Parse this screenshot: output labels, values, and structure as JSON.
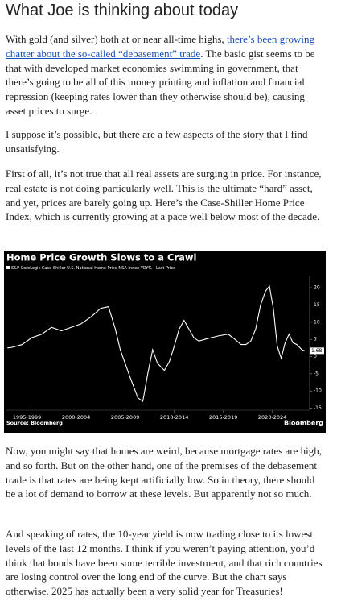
{
  "header": {
    "title": "What Joe is thinking about today"
  },
  "paragraphs": [
    [
      "With gold (and silver) both at or near all-time highs,",
      " there’s been growing chatter about the so-called “debasement” trade",
      ". The basic gist seems to be that with developed market economies swimming in government, that there’s going to be all of this money printing and inflation and financial repression (keeping rates lower than they otherwise should be), causing asset prices to surge."
    ],
    [
      "I suppose it’s possible, but there are a few aspects of the story that I find unsatisfying."
    ],
    [
      "First of all, it’s not true that all real assets are surging in price. For instance, real estate is not doing particularly well. This is the ultimate “hard” asset, and yet, prices are barely going up. Here’s the Case-Shiller Home Price Index, which is currently growing at a pace well below most of the decade."
    ],
    [
      "Now, you might say that homes are weird, because mortgage rates are high, and so forth. But on the other hand, one of the premises of the debasement trade is that rates are being kept artificially low. So in theory, there should be a lot of demand to borrow at these levels. But apparently not so much."
    ],
    [
      "And speaking of rates, the 10-year yield is now trading close to its lowest levels of the last 12 months. I think if you weren’t paying attention, you’d think that bonds have been some terrible investment, and that rich countries are losing control over the long end of the curve. But the chart says otherwise. 2025 has actually been a very solid year for Treasuries!"
    ]
  ],
  "chart_data": {
    "type": "line",
    "title": "Home Price Growth Slows to a Crawl",
    "source": "Source: Bloomberg",
    "brand": "Bloomberg",
    "x": [
      1995.5,
      1996,
      1997,
      1998,
      1999,
      2000,
      2001,
      2002,
      2003,
      2004,
      2005,
      2005.8,
      2006.5,
      2007,
      2007.5,
      2008,
      2008.8,
      2009.3,
      2009.8,
      2010.3,
      2010.8,
      2011.5,
      2012,
      2012.5,
      2013,
      2013.5,
      2014,
      2014.5,
      2015,
      2016,
      2017,
      2018,
      2018.7,
      2019.3,
      2019.8,
      2020.3,
      2020.8,
      2021.3,
      2021.8,
      2022.2,
      2022.6,
      2023,
      2023.4,
      2023.8,
      2024.2,
      2024.6,
      2025,
      2025.5,
      2025.8
    ],
    "series": [
      {
        "name": "S&P CoreLogic Case-Shiller U.S. National Home Price NSA Index YOY% - Last Price",
        "color": "#ffffff",
        "values": [
          2.5,
          2.7,
          3.5,
          5.5,
          6.5,
          8.5,
          7.5,
          8.5,
          9.5,
          11.5,
          14,
          14.5,
          8,
          2,
          -2,
          -6,
          -12,
          -13,
          -5,
          2,
          -2,
          -4,
          -1.5,
          3,
          8,
          10.5,
          8,
          5.5,
          4.5,
          5.3,
          6,
          6.5,
          5,
          3.5,
          3.5,
          4.5,
          8,
          15,
          19,
          20.5,
          14,
          3,
          -0.5,
          4,
          6.5,
          4,
          3.5,
          2,
          1.68
        ]
      }
    ],
    "xlim": [
      1995.4,
      2026.3
    ],
    "xticks": [
      {
        "value": 1997.5,
        "label": "1995-1999"
      },
      {
        "value": 2002.5,
        "label": "2000-2004"
      },
      {
        "value": 2007.5,
        "label": "2005-2009"
      },
      {
        "value": 2012.5,
        "label": "2010-2014"
      },
      {
        "value": 2017.5,
        "label": "2015-2019"
      },
      {
        "value": 2022.5,
        "label": "2020-2024"
      }
    ],
    "ylim": [
      -16.5,
      24
    ],
    "yticks": [
      20,
      15,
      10,
      5,
      0,
      -5,
      -10,
      -15
    ]
  }
}
